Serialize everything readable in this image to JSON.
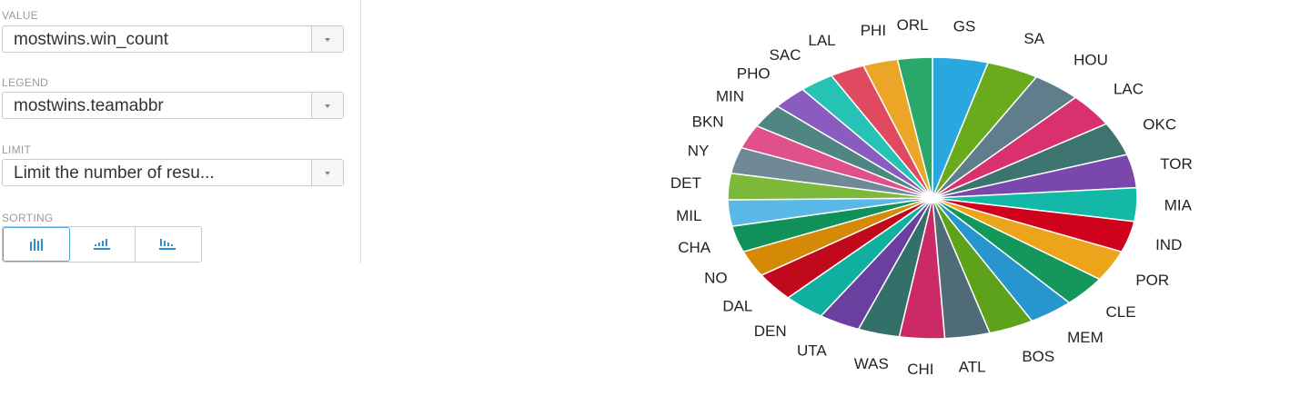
{
  "panel": {
    "value": {
      "label": "VALUE",
      "selected": "mostwins.win_count"
    },
    "legend": {
      "label": "LEGEND",
      "selected": "mostwins.teamabbr"
    },
    "limit": {
      "label": "LIMIT",
      "placeholder": "Limit the number of resu..."
    },
    "sorting": {
      "label": "SORTING"
    }
  },
  "chart_data": {
    "type": "pie",
    "categories": [
      "GS",
      "SA",
      "HOU",
      "LAC",
      "OKC",
      "TOR",
      "MIA",
      "IND",
      "POR",
      "CLE",
      "MEM",
      "BOS",
      "ATL",
      "CHI",
      "WAS",
      "UTA",
      "DEN",
      "DAL",
      "NO",
      "CHA",
      "MIL",
      "DET",
      "NY",
      "BKN",
      "MIN",
      "PHO",
      "SAC",
      "LAL",
      "PHI",
      "ORL"
    ],
    "values": [
      16,
      15,
      14,
      14,
      14,
      14,
      14,
      13,
      13,
      13,
      13,
      13,
      13,
      13,
      12,
      12,
      12,
      12,
      11,
      11,
      11,
      11,
      11,
      10,
      10,
      10,
      10,
      10,
      10,
      10
    ],
    "colors": [
      "#29a8e0",
      "#6aab1e",
      "#5f7d8b",
      "#d9306e",
      "#3d7470",
      "#7a48ad",
      "#14b8a6",
      "#d0021b",
      "#eca41b",
      "#13975a",
      "#2796cf",
      "#5ea11a",
      "#4f6b78",
      "#cc2a66",
      "#33706a",
      "#6b3fa0",
      "#0fb0a0",
      "#c0091a",
      "#d48a06",
      "#11915a",
      "#5ab8e6",
      "#7cb83a",
      "#6f8a96",
      "#e0508a",
      "#4f8582",
      "#8a5cbf",
      "#26c2b4",
      "#e04a60",
      "#eba527",
      "#2aa86a"
    ]
  }
}
